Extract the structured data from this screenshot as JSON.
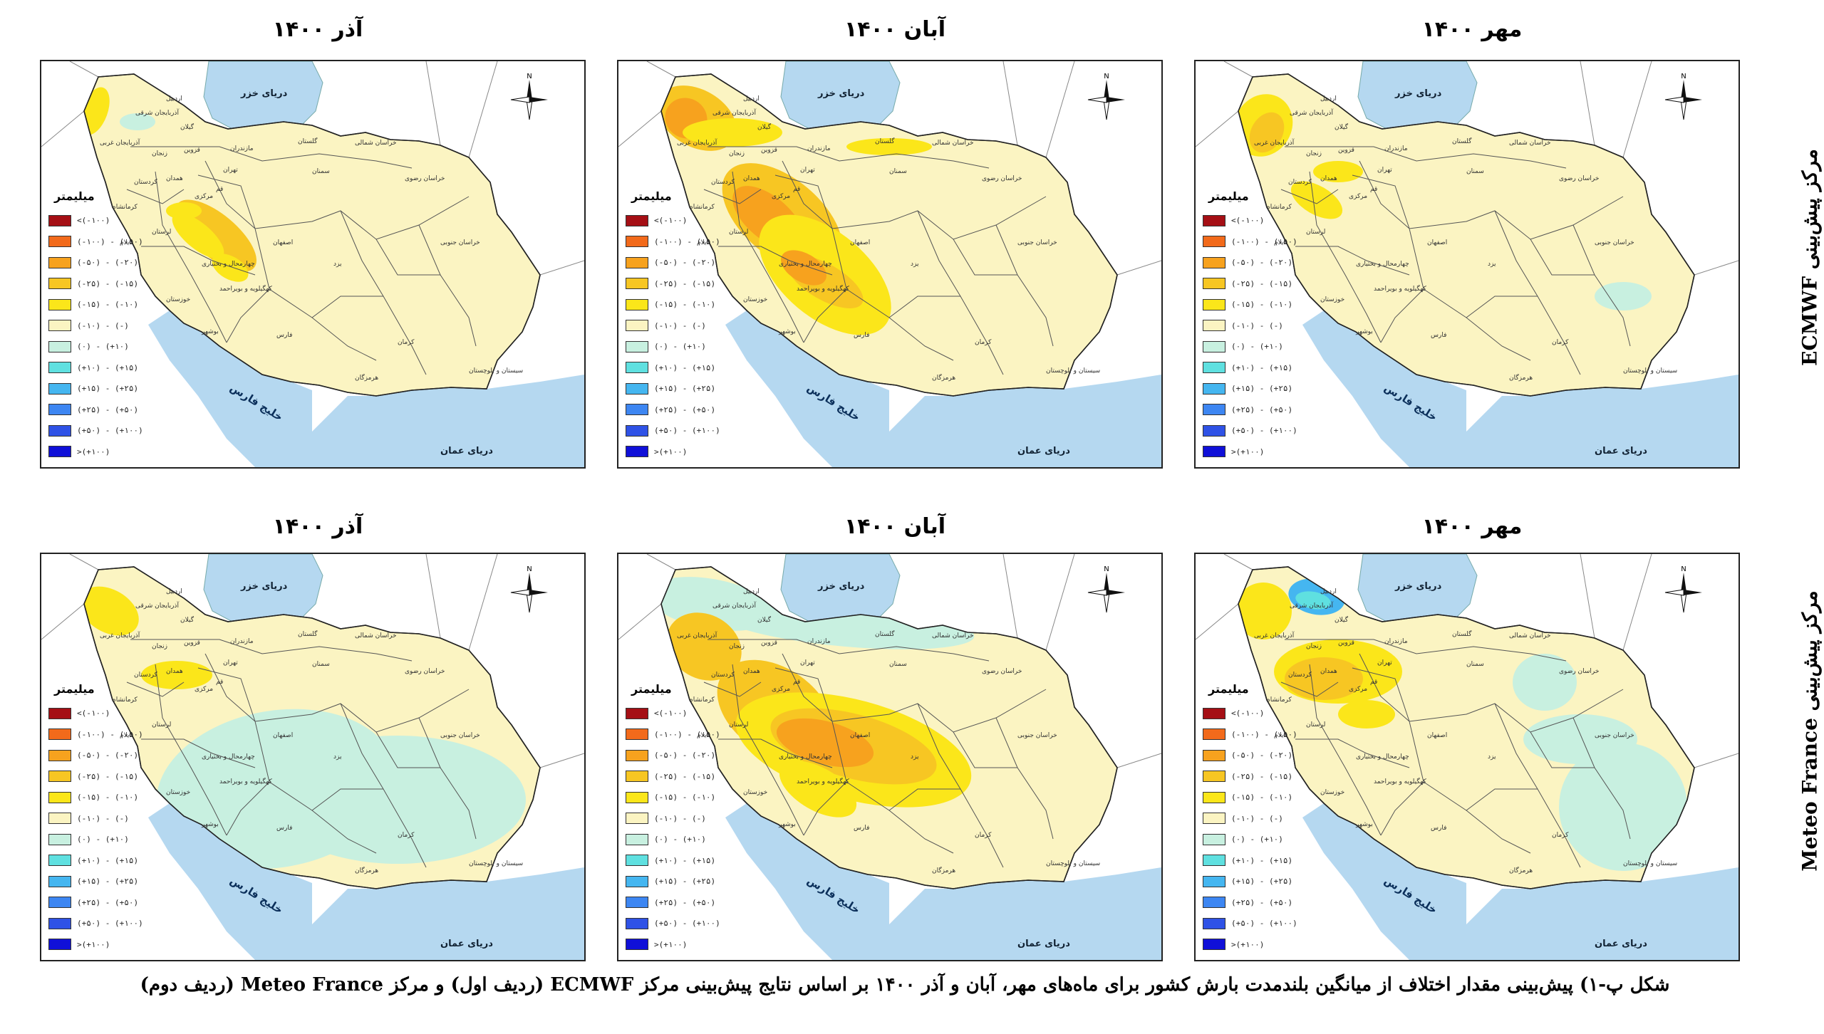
{
  "rows": [
    {
      "label": "مرکز پیش‌بینی ECMWF",
      "panels": [
        {
          "title": "آذر ۱۴۰۰",
          "pattern": "ecmwf_azar"
        },
        {
          "title": "آبان ۱۴۰۰",
          "pattern": "ecmwf_aban"
        },
        {
          "title": "مهر ۱۴۰۰",
          "pattern": "ecmwf_mehr"
        }
      ]
    },
    {
      "label": "مرکز پیش‌بینی Meteo France",
      "panels": [
        {
          "title": "آذر ۱۴۰۰",
          "pattern": "mf_azar"
        },
        {
          "title": "آبان ۱۴۰۰",
          "pattern": "mf_aban"
        },
        {
          "title": "مهر ۱۴۰۰",
          "pattern": "mf_mehr"
        }
      ]
    }
  ],
  "map_labels": {
    "caspian": "دریای خزر",
    "oman_sea": "دریای عمان",
    "persian_gulf": "خلیج فارس",
    "north": "N",
    "provinces": [
      "آذربایجان شرقی",
      "آذربایجان غربی",
      "اردبیل",
      "گیلان",
      "زنجان",
      "قزوین",
      "مازندران",
      "گلستان",
      "خراسان شمالی",
      "خراسان رضوی",
      "سمنان",
      "تهران",
      "قم",
      "مرکزی",
      "همدان",
      "کردستان",
      "کرمانشاه",
      "لرستان",
      "ایلام",
      "اصفهان",
      "یزد",
      "خراسان جنوبی",
      "چهارمحال و بختیاری",
      "کهگیلویه و بویراحمد",
      "خوزستان",
      "بوشهر",
      "فارس",
      "کرمان",
      "هرمزگان",
      "سیستان و بلوچستان"
    ]
  },
  "legend": {
    "title": "میلیمتر",
    "items": [
      {
        "label": "<(-۱۰۰)",
        "color": "#a50f15"
      },
      {
        "label": "(-۱۰۰) - (-۵۰)",
        "color": "#f26a1b"
      },
      {
        "label": "(-۵۰) - (-۲۰)",
        "color": "#f7a21e"
      },
      {
        "label": "(-۲۵) - (-۱۵)",
        "color": "#f7c623"
      },
      {
        "label": "(-۱۵) - (-۱۰)",
        "color": "#fbe61a"
      },
      {
        "label": "(-۱۰) - (-)",
        "color": "#fbf4c2"
      },
      {
        "label": "(۰) - (+۱۰)",
        "color": "#c8f0e0"
      },
      {
        "label": "(+۱۰) - (+۱۵)",
        "color": "#5fe0e0"
      },
      {
        "label": "(+۱۵) - (+۲۵)",
        "color": "#45b6f0"
      },
      {
        "label": "(+۲۵) - (+۵۰)",
        "color": "#3d86f2"
      },
      {
        "label": "(+۵۰) - (+۱۰۰)",
        "color": "#2f52e6"
      },
      {
        "label": ">(+۱۰۰)",
        "color": "#1010d8"
      }
    ]
  },
  "caption": "شکل پ-۱) پیش‌بینی مقدار اختلاف از میانگین بلندمدت بارش کشور برای ماه‌های مهر، آبان و آذر ۱۴۰۰ بر اساس نتایج پیش‌بینی مرکز ECMWF (ردیف اول) و مرکز Meteo France (ردیف دوم)"
}
